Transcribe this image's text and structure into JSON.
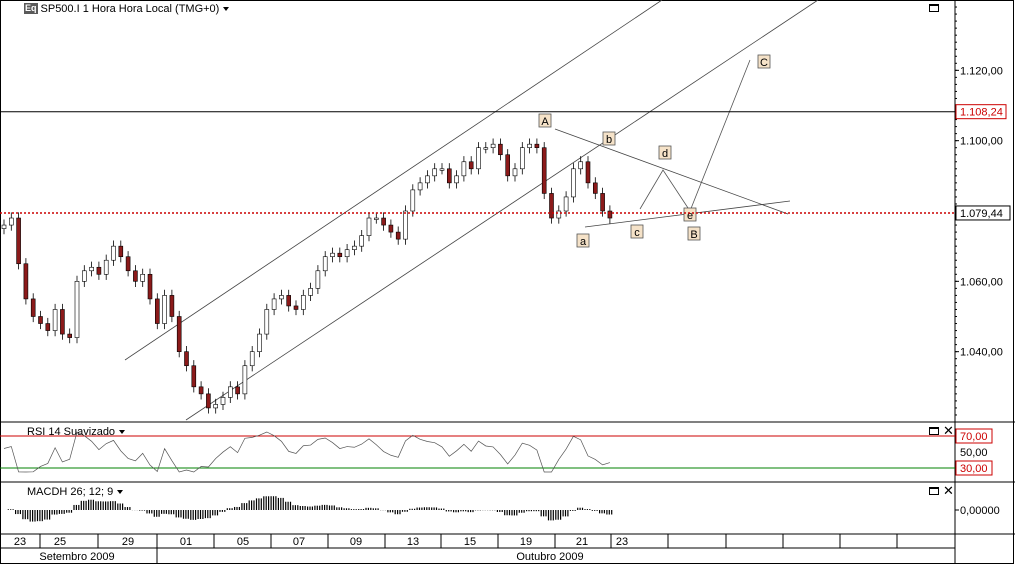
{
  "header": {
    "icon_text": "Eq",
    "title": "SP500.I 1 Hora Hora Local (TMG+0)"
  },
  "rsi_panel": {
    "title": "RSI 14 Suavizado",
    "upper": "70,00",
    "mid": "50,00",
    "lower": "30,00"
  },
  "macd_panel": {
    "title": "MACDH 26; 12; 9",
    "zero": "0,00000"
  },
  "price_axis": {
    "ticks": [
      "1.120,00",
      "1.100,00",
      "1.080,00",
      "1.060,00",
      "1.040,00"
    ],
    "resistance_label": "1.108,24",
    "current_label": "1.079,44"
  },
  "date_axis": {
    "days": [
      "23",
      "25",
      "29",
      "01",
      "05",
      "07",
      "09",
      "13",
      "15",
      "19",
      "21",
      "23"
    ],
    "months": [
      "Setembro 2009",
      "Outubro 2009"
    ]
  },
  "colors": {
    "up": "#ffffff",
    "down": "#8b1a1a",
    "rsi_upper": "#cc0000",
    "rsi_lower": "#008000",
    "hline_dotted": "#cc0000"
  },
  "chart_data": {
    "type": "candlestick",
    "title": "SP500.I 1 Hora Hora Local (TMG+0)",
    "ylim": [
      1020,
      1140
    ],
    "price_series_approx": [
      1076,
      1078,
      1065,
      1055,
      1050,
      1048,
      1046,
      1052,
      1045,
      1044,
      1060,
      1063,
      1064,
      1062,
      1066,
      1070,
      1067,
      1063,
      1060,
      1062,
      1055,
      1048,
      1056,
      1050,
      1040,
      1036,
      1030,
      1028,
      1024,
      1025,
      1027,
      1030,
      1028,
      1036,
      1040,
      1045,
      1052,
      1055,
      1056,
      1053,
      1052,
      1056,
      1058,
      1063,
      1067,
      1068,
      1067,
      1069,
      1070,
      1073,
      1078,
      1078,
      1076,
      1074,
      1072,
      1080,
      1086,
      1088,
      1090,
      1092,
      1092,
      1088,
      1090,
      1094,
      1092,
      1098,
      1098,
      1099,
      1096,
      1090,
      1092,
      1098,
      1099,
      1098,
      1085,
      1078,
      1080,
      1084,
      1092,
      1094,
      1088,
      1085,
      1080,
      1078
    ],
    "wave_labels": [
      "A",
      "b",
      "d",
      "C",
      "a",
      "c",
      "e",
      "B"
    ],
    "horizontal_levels": [
      1108.24,
      1079.44
    ],
    "rsi": {
      "upper": 70,
      "lower": 30
    },
    "x_tick_labels": [
      "23",
      "25",
      "29",
      "01",
      "05",
      "07",
      "09",
      "13",
      "15",
      "19",
      "21",
      "23"
    ]
  }
}
